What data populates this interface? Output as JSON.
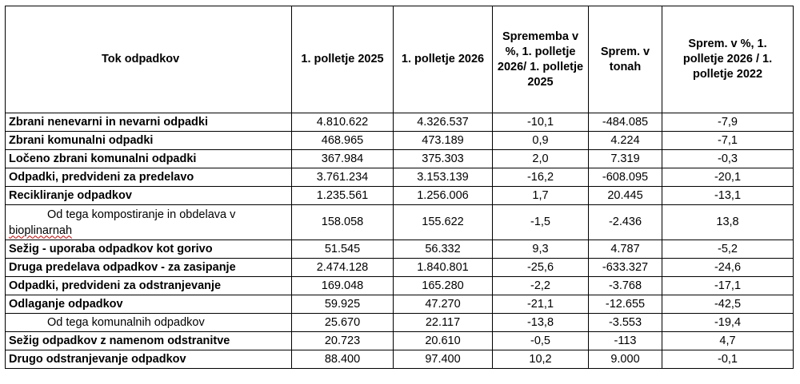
{
  "table": {
    "headers": [
      "Tok odpadkov",
      "1. polletje 2025",
      "1. polletje 2026",
      "Sprememba v %, 1. polletje 2026/ 1. polletje 2025",
      "Sprem. v tonah",
      "Sprem. v %, 1. polletje 2026 / 1. polletje 2022"
    ],
    "rows": [
      {
        "label": "Zbrani nenevarni in nevarni odpadki",
        "v2025": "4.810.622",
        "v2026": "4.326.537",
        "pct": "-10,1",
        "tons": "-484.085",
        "pct2022": "-7,9"
      },
      {
        "label": "Zbrani komunalni odpadki",
        "v2025": "468.965",
        "v2026": "473.189",
        "pct": "0,9",
        "tons": "4.224",
        "pct2022": "-7,1"
      },
      {
        "label": "Ločeno zbrani komunalni odpadki",
        "v2025": "367.984",
        "v2026": "375.303",
        "pct": "2,0",
        "tons": "7.319",
        "pct2022": "-0,3"
      },
      {
        "label": "Odpadki, predvideni za predelavo",
        "v2025": "3.761.234",
        "v2026": "3.153.139",
        "pct": "-16,2",
        "tons": "-608.095",
        "pct2022": "-20,1"
      },
      {
        "label": "Recikliranje odpadkov",
        "v2025": "1.235.561",
        "v2026": "1.256.006",
        "pct": "1,7",
        "tons": "20.445",
        "pct2022": "-13,1"
      },
      {
        "label_a": "Od tega kompostiranje   in obdelava v",
        "label_b": "bioplinarnah",
        "v2025": "158.058",
        "v2026": "155.622",
        "pct": "-1,5",
        "tons": "-2.436",
        "pct2022": "13,8"
      },
      {
        "label": "Sežig - uporaba odpadkov kot gorivo",
        "v2025": "51.545",
        "v2026": "56.332",
        "pct": "9,3",
        "tons": "4.787",
        "pct2022": "-5,2"
      },
      {
        "label": "Druga predelava odpadkov - za zasipanje",
        "v2025": "2.474.128",
        "v2026": "1.840.801",
        "pct": "-25,6",
        "tons": "-633.327",
        "pct2022": "-24,6"
      },
      {
        "label": "Odpadki, predvideni za odstranjevanje",
        "v2025": "169.048",
        "v2026": "165.280",
        "pct": "-2,2",
        "tons": "-3.768",
        "pct2022": "-17,1"
      },
      {
        "label": "Odlaganje odpadkov",
        "v2025": "59.925",
        "v2026": "47.270",
        "pct": "-21,1",
        "tons": "-12.655",
        "pct2022": "-42,5"
      },
      {
        "label": "Od tega komunalnih odpadkov",
        "v2025": "25.670",
        "v2026": "22.117",
        "pct": "-13,8",
        "tons": "-3.553",
        "pct2022": "-19,4"
      },
      {
        "label": "Sežig odpadkov z namenom odstranitve",
        "v2025": "20.723",
        "v2026": "20.610",
        "pct": "-0,5",
        "tons": "-113",
        "pct2022": "4,7"
      },
      {
        "label": "Drugo odstranjevanje odpadkov",
        "v2025": "88.400",
        "v2026": "97.400",
        "pct": "10,2",
        "tons": "9.000",
        "pct2022": "-0,1"
      }
    ]
  }
}
